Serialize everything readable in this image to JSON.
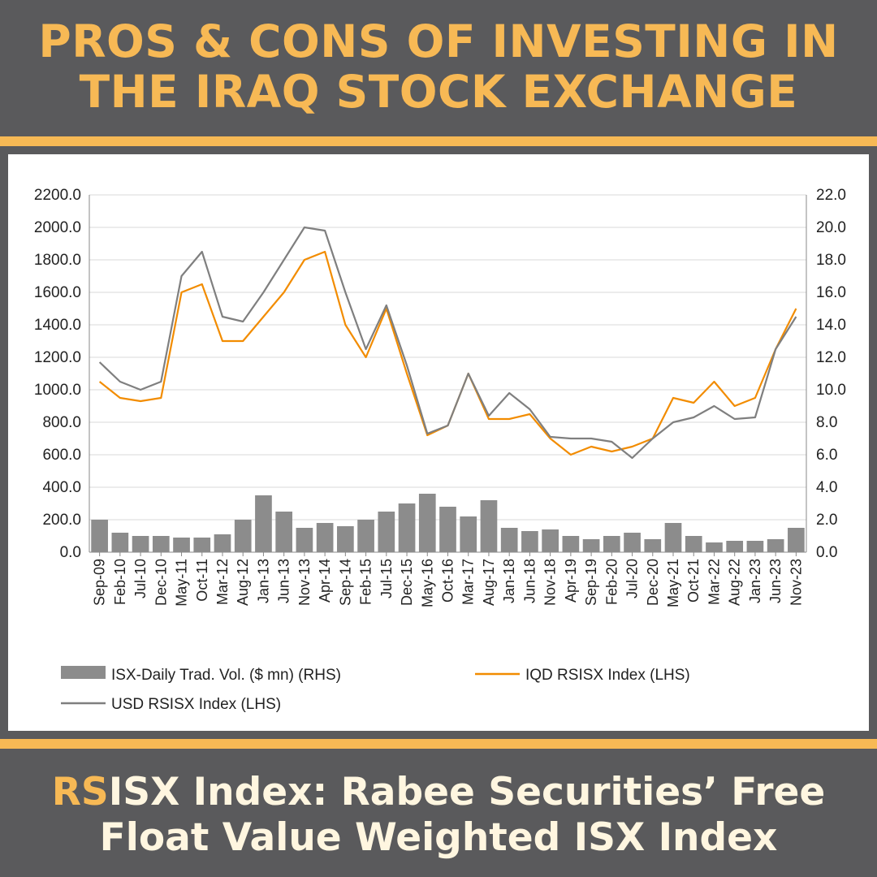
{
  "headline": {
    "line1": "PROS & CONS OF INVESTING IN",
    "line2": "THE IRAQ STOCK EXCHANGE"
  },
  "footer": {
    "highlight": "RS",
    "line1_rest": "ISX Index: Rabee Securities’ Free",
    "line2": "Float Value Weighted ISX Index"
  },
  "colors": {
    "accent": "#f7b955",
    "background": "#5a5a5c",
    "iqd_series": "#f28c00",
    "usd_series": "#7f7f7f",
    "volume_bars": "#8c8c8c"
  },
  "chart_data": {
    "type": "line",
    "title": "",
    "x_tick_labels": [
      "Sep-09",
      "Feb-10",
      "Jul-10",
      "Dec-10",
      "May-11",
      "Oct-11",
      "Mar-12",
      "Aug-12",
      "Jan-13",
      "Jun-13",
      "Nov-13",
      "Apr-14",
      "Sep-14",
      "Feb-15",
      "Jul-15",
      "Dec-15",
      "May-16",
      "Oct-16",
      "Mar-17",
      "Aug-17",
      "Jan-18",
      "Jun-18",
      "Nov-18",
      "Apr-19",
      "Sep-19",
      "Feb-20",
      "Jul-20",
      "Dec-20",
      "May-21",
      "Oct-21",
      "Mar-22",
      "Aug-22",
      "Jan-23",
      "Jun-23",
      "Nov-23"
    ],
    "y_left": {
      "min": 0,
      "max": 2200,
      "ticks": [
        "0.0",
        "200.0",
        "400.0",
        "600.0",
        "800.0",
        "1000.0",
        "1200.0",
        "1400.0",
        "1600.0",
        "1800.0",
        "2000.0",
        "2200.0"
      ]
    },
    "y_right": {
      "min": 0,
      "max": 22,
      "ticks": [
        "0.0",
        "2.0",
        "4.0",
        "6.0",
        "8.0",
        "10.0",
        "12.0",
        "14.0",
        "16.0",
        "18.0",
        "20.0",
        "22.0"
      ]
    },
    "grid": true,
    "legend_position": "bottom",
    "series": [
      {
        "name": "ISX-Daily Trad. Vol. ($ mn) (RHS)",
        "kind": "bar",
        "axis": "right",
        "values": [
          2.0,
          1.2,
          1.0,
          1.0,
          0.9,
          0.9,
          1.1,
          2.0,
          3.5,
          2.5,
          1.5,
          1.8,
          1.6,
          2.0,
          2.5,
          3.0,
          3.6,
          2.8,
          2.2,
          3.2,
          1.5,
          1.3,
          1.4,
          1.0,
          0.8,
          1.0,
          1.2,
          0.8,
          1.8,
          1.0,
          0.6,
          0.7,
          0.7,
          0.8,
          1.5
        ]
      },
      {
        "name": "IQD RSISX Index (LHS)",
        "kind": "line",
        "axis": "left",
        "values": [
          1050,
          950,
          930,
          950,
          1600,
          1650,
          1300,
          1300,
          1450,
          1600,
          1800,
          1850,
          1400,
          1200,
          1500,
          1100,
          720,
          780,
          1100,
          820,
          820,
          850,
          700,
          600,
          650,
          620,
          650,
          700,
          950,
          920,
          1050,
          900,
          950,
          1250,
          1500
        ]
      },
      {
        "name": "USD RSISX Index (LHS)",
        "kind": "line",
        "axis": "left",
        "values": [
          1170,
          1050,
          1000,
          1050,
          1700,
          1850,
          1450,
          1420,
          1600,
          1800,
          2000,
          1980,
          1600,
          1250,
          1520,
          1150,
          730,
          780,
          1100,
          840,
          980,
          880,
          710,
          700,
          700,
          680,
          580,
          700,
          800,
          830,
          900,
          820,
          830,
          1250,
          1450
        ]
      }
    ]
  }
}
